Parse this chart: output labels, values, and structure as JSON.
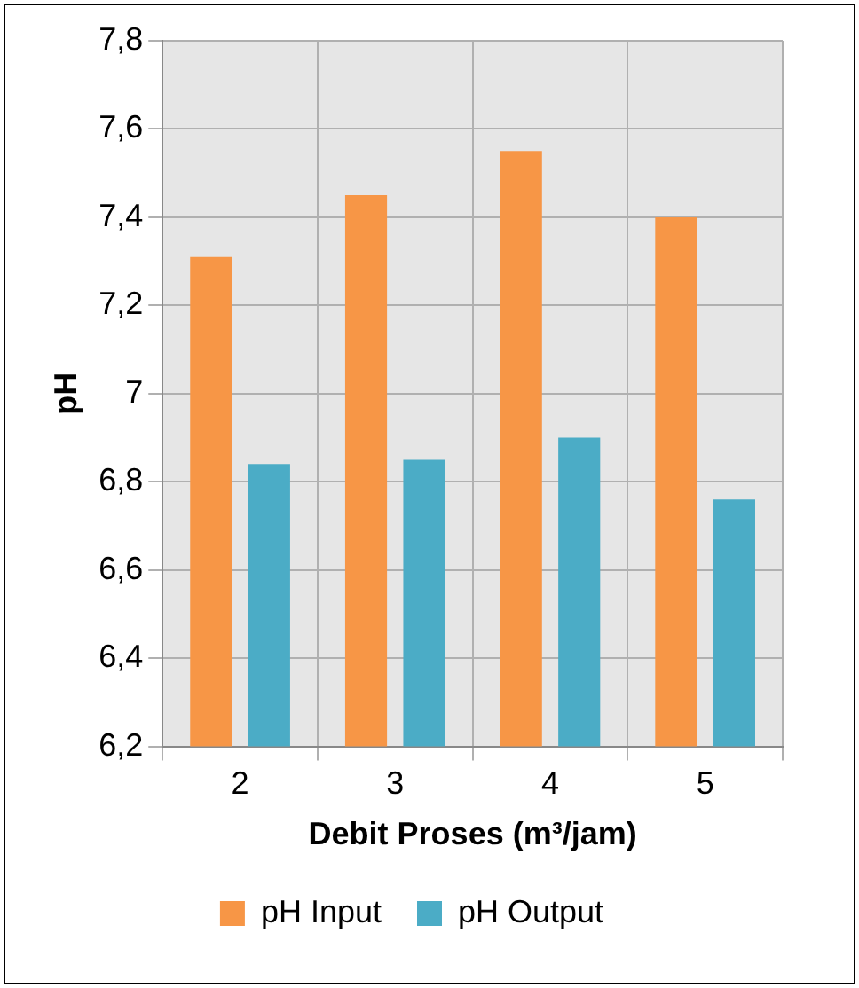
{
  "chart_data": {
    "type": "bar",
    "xlabel": "Debit Proses (m³/jam)",
    "ylabel": "pH",
    "categories": [
      "2",
      "3",
      "4",
      "5"
    ],
    "series": [
      {
        "name": "pH Input",
        "color": "#f79646",
        "values": [
          7.31,
          7.45,
          7.55,
          7.4
        ]
      },
      {
        "name": "pH Output",
        "color": "#4bacc6",
        "values": [
          6.84,
          6.85,
          6.9,
          6.76
        ]
      }
    ],
    "ylim": [
      6.2,
      7.8
    ],
    "yticks": [
      {
        "value": 6.2,
        "label": "6,2"
      },
      {
        "value": 6.4,
        "label": "6,4"
      },
      {
        "value": 6.6,
        "label": "6,6"
      },
      {
        "value": 6.8,
        "label": "6,8"
      },
      {
        "value": 7,
        "label": "7"
      },
      {
        "value": 7.2,
        "label": "7,2"
      },
      {
        "value": 7.4,
        "label": "7,4"
      },
      {
        "value": 7.6,
        "label": "7,6"
      },
      {
        "value": 7.8,
        "label": "7,8"
      }
    ],
    "grid": true,
    "legend": "bottom"
  }
}
